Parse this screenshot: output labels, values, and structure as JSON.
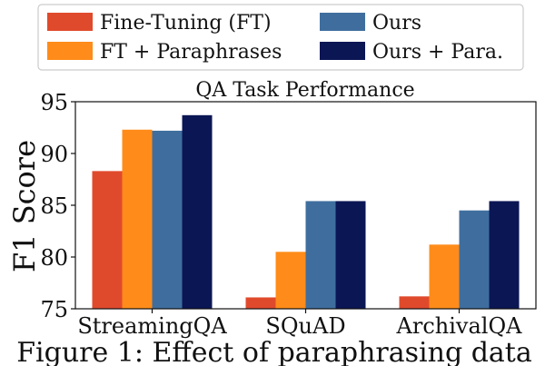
{
  "chart_data": {
    "type": "bar",
    "title": "QA Task Performance",
    "ylabel": "F1 Score",
    "xlabel": "",
    "ylim": [
      75,
      95
    ],
    "yticks": [
      75,
      80,
      85,
      90,
      95
    ],
    "grid": false,
    "legend_position": "top",
    "categories": [
      "StreamingQA",
      "SQuAD",
      "ArchivalQA"
    ],
    "series": [
      {
        "name": "Fine-Tuning (FT)",
        "color": "#e04a2c",
        "values": [
          88.3,
          76.1,
          76.2
        ]
      },
      {
        "name": "FT + Paraphrases",
        "color": "#ff8c1a",
        "values": [
          92.3,
          80.5,
          81.2
        ]
      },
      {
        "name": "Ours",
        "color": "#3f6e9e",
        "values": [
          92.2,
          85.4,
          84.5
        ]
      },
      {
        "name": "Ours + Para.",
        "color": "#0b1655",
        "values": [
          93.7,
          85.4,
          85.4
        ]
      }
    ]
  },
  "caption": "Figure 1: Effect of paraphrasing data"
}
